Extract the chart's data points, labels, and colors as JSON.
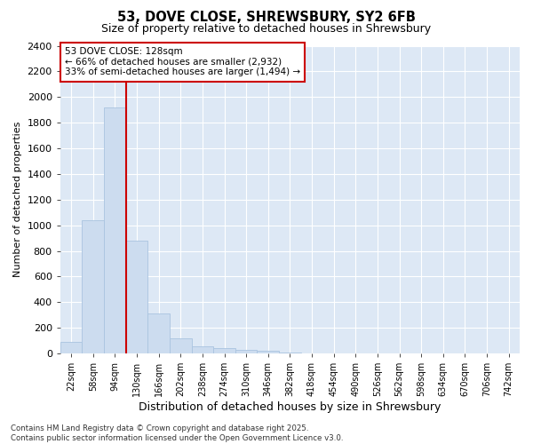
{
  "title": "53, DOVE CLOSE, SHREWSBURY, SY2 6FB",
  "subtitle": "Size of property relative to detached houses in Shrewsbury",
  "xlabel": "Distribution of detached houses by size in Shrewsbury",
  "ylabel": "Number of detached properties",
  "bar_color": "#ccdcef",
  "bar_edge_color": "#aac4e0",
  "background_color": "#dde8f5",
  "fig_background_color": "#ffffff",
  "categories": [
    "22sqm",
    "58sqm",
    "94sqm",
    "130sqm",
    "166sqm",
    "202sqm",
    "238sqm",
    "274sqm",
    "310sqm",
    "346sqm",
    "382sqm",
    "418sqm",
    "454sqm",
    "490sqm",
    "526sqm",
    "562sqm",
    "598sqm",
    "634sqm",
    "670sqm",
    "706sqm",
    "742sqm"
  ],
  "values": [
    90,
    1040,
    1920,
    880,
    315,
    120,
    55,
    40,
    30,
    20,
    5,
    2,
    1,
    0,
    0,
    0,
    0,
    0,
    0,
    0,
    0
  ],
  "ylim": [
    0,
    2400
  ],
  "yticks": [
    0,
    200,
    400,
    600,
    800,
    1000,
    1200,
    1400,
    1600,
    1800,
    2000,
    2200,
    2400
  ],
  "red_line_x": 2.5,
  "annotation_title": "53 DOVE CLOSE: 128sqm",
  "annotation_line1": "← 66% of detached houses are smaller (2,932)",
  "annotation_line2": "33% of semi-detached houses are larger (1,494) →",
  "annotation_box_color": "#cc0000",
  "footer_line1": "Contains HM Land Registry data © Crown copyright and database right 2025.",
  "footer_line2": "Contains public sector information licensed under the Open Government Licence v3.0."
}
